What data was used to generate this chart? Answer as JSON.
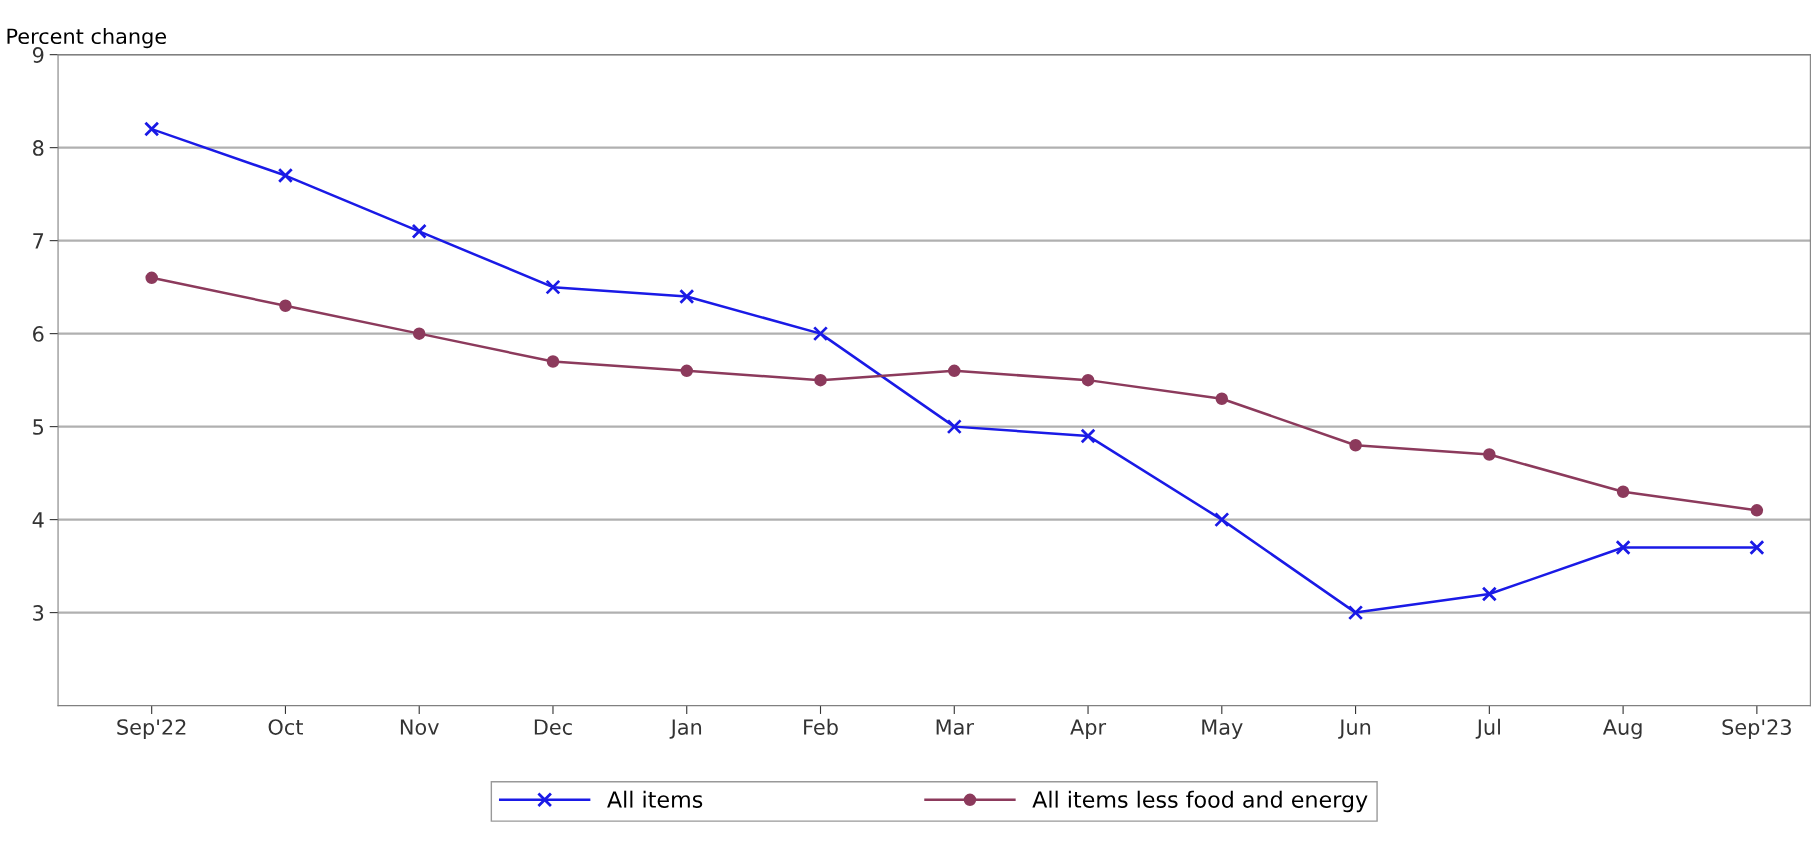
{
  "chart_data": {
    "type": "line",
    "ylabel": "Percent change",
    "categories": [
      "Sep'22",
      "Oct",
      "Nov",
      "Dec",
      "Jan",
      "Feb",
      "Mar",
      "Apr",
      "May",
      "Jun",
      "Jul",
      "Aug",
      "Sep'23"
    ],
    "series": [
      {
        "name": "All items",
        "color": "#1a1ae6",
        "marker": "cross",
        "values": [
          8.2,
          7.7,
          7.1,
          6.5,
          6.4,
          6.0,
          5.0,
          4.9,
          4.0,
          3.0,
          3.2,
          3.7,
          3.7
        ]
      },
      {
        "name": "All items less food and energy",
        "color": "#8c3a5c",
        "marker": "circle",
        "values": [
          6.6,
          6.3,
          6.0,
          5.7,
          5.6,
          5.5,
          5.6,
          5.5,
          5.3,
          4.8,
          4.7,
          4.3,
          4.1
        ]
      }
    ],
    "ylim": [
      2,
      9
    ],
    "yticks": [
      3,
      4,
      5,
      6,
      7,
      8,
      9
    ],
    "grid": "y",
    "legend": "bottom",
    "line_style": "solid"
  }
}
